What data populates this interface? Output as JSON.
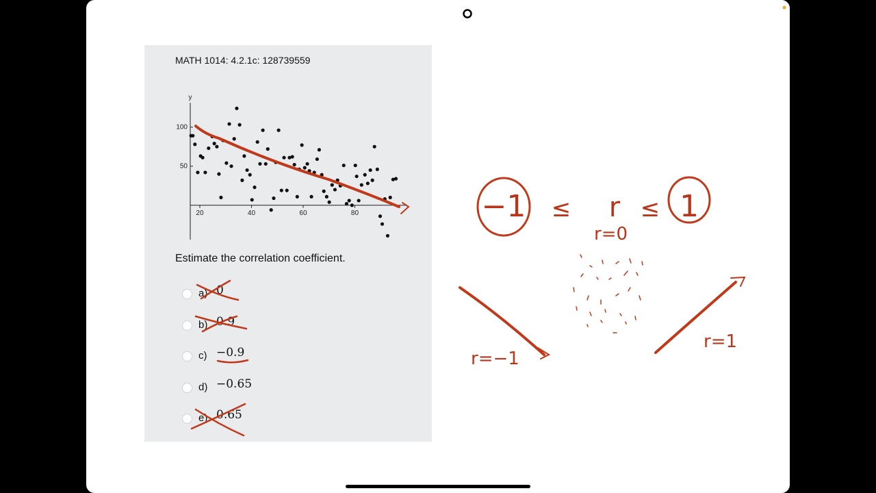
{
  "header": {
    "title": "MATH 1014: 4.2.1c: 128739559"
  },
  "chart_data": {
    "type": "scatter",
    "y_label": "y",
    "x": [
      16.6,
      17.3,
      18.1,
      19.2,
      20.3,
      21.1,
      22.1,
      23.4,
      24.8,
      25.6,
      26.6,
      27.4,
      28.2,
      29.0,
      30.3,
      31.4,
      32.2,
      33.3,
      34.3,
      35.4,
      36.4,
      37.2,
      38.3,
      39.4,
      40.2,
      41.2,
      42.3,
      43.3,
      44.4,
      45.5,
      46.3,
      47.6,
      48.6,
      49.4,
      50.5,
      51.6,
      52.6,
      53.7,
      54.7,
      55.8,
      56.6,
      57.7,
      58.5,
      59.5,
      60.6,
      61.6,
      62.4,
      63.2,
      64.3,
      65.4,
      66.2,
      67.2,
      68.0,
      69.1,
      70.1,
      71.2,
      72.3,
      73.3,
      74.4,
      75.7,
      76.8,
      77.8,
      78.9,
      80.2,
      80.7,
      81.5,
      82.6,
      83.9,
      85.0,
      86.0,
      86.8,
      87.6,
      88.7,
      89.8,
      90.6,
      91.6,
      92.7,
      93.7,
      94.8,
      95.9
    ],
    "values": [
      89,
      89,
      78,
      42,
      63,
      61,
      42,
      73,
      88,
      79,
      75,
      40,
      10,
      83,
      54,
      104,
      50,
      85,
      124,
      103,
      32,
      63,
      45,
      39,
      7,
      23,
      81,
      53,
      96,
      53,
      72,
      -6,
      9,
      55,
      96,
      19,
      61,
      19,
      61,
      62,
      52,
      11,
      46,
      77,
      48,
      53,
      44,
      11,
      42,
      59,
      71,
      39,
      18,
      11,
      4,
      26,
      20,
      32,
      25,
      51,
      2,
      6,
      0,
      51,
      37,
      6,
      26,
      39,
      28,
      45,
      32,
      75,
      46,
      -14,
      -24,
      8,
      -39,
      10,
      33,
      34
    ],
    "color": "#111111",
    "xlim": [
      16.3,
      100
    ],
    "ylim": [
      -44,
      140
    ],
    "xticks": [
      20,
      40,
      60,
      80
    ],
    "yticks": [
      50,
      100
    ]
  },
  "question": "Estimate the correlation coefficient.",
  "options": [
    {
      "letter": "a)",
      "value": "0"
    },
    {
      "letter": "b)",
      "value": "0.9"
    },
    {
      "letter": "c)",
      "value": "−0.9"
    },
    {
      "letter": "d)",
      "value": "−0.65"
    },
    {
      "letter": "e)",
      "value": "0.65"
    }
  ],
  "annotations": {
    "inequality": [
      "−1",
      "≤",
      "r",
      "≤",
      "1"
    ],
    "zero_label": "r=0",
    "negative_label": "r=−1",
    "positive_label": "r=1"
  }
}
